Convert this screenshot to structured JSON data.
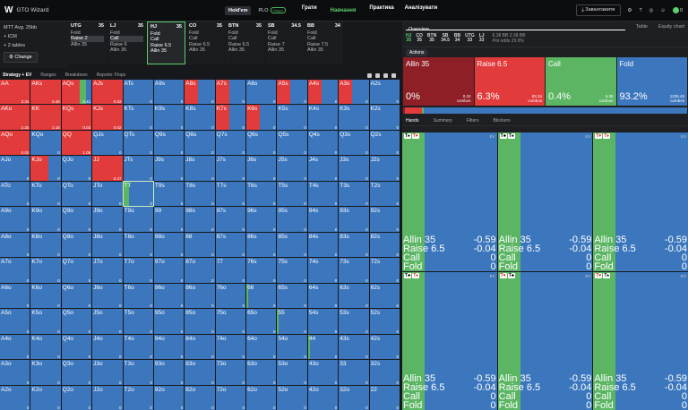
{
  "topbar": {
    "logo": "W",
    "app": "GTO Wizard",
    "modes": [
      "Hold'em",
      "PLO"
    ],
    "plo_badge": "Скоро",
    "nav": [
      "Грати",
      "Навчання",
      "Практика",
      "Аналізувати"
    ],
    "download": "Завантажити",
    "coins": "0"
  },
  "sidebar": {
    "line1": "MTT Avg. 25bb",
    "line2": "+ ICM",
    "line3": "+ 2 tables",
    "change": "Change"
  },
  "positions": [
    {
      "name": "UTG",
      "bb": "35",
      "lines": [
        "Fold",
        "Raise 2",
        "Allin 35"
      ],
      "sel": 1
    },
    {
      "name": "LJ",
      "bb": "35",
      "lines": [
        "Fold",
        "Call",
        "Raise 6",
        "Allin 35"
      ],
      "sel": 1
    },
    {
      "name": "HJ",
      "bb": "35",
      "lines": [
        "Fold",
        "Call",
        "Raise 6.5",
        "Allin 35"
      ],
      "active": true
    },
    {
      "name": "CO",
      "bb": "35",
      "lines": [
        "Fold",
        "Call",
        "Raise 6.5",
        "Allin 35"
      ]
    },
    {
      "name": "BTN",
      "bb": "35",
      "lines": [
        "Fold",
        "Call",
        "Raise 6.5",
        "Allin 35"
      ]
    },
    {
      "name": "SB",
      "bb": "34.5",
      "lines": [
        "Fold",
        "Call",
        "Raise 7",
        "Allin 35"
      ]
    },
    {
      "name": "BB",
      "bb": "34",
      "lines": [
        "Fold",
        "Call",
        "Raise 7.5",
        "Allin 35"
      ]
    }
  ],
  "toolbar": {
    "items": [
      "Strategy + EV",
      "Ranges",
      "Breakdown",
      "Reports: Flops"
    ]
  },
  "grid": [
    {
      "h": "AA",
      "v": "3.34",
      "r": 1
    },
    {
      "h": "AKs",
      "v": "0.48",
      "r": 1
    },
    {
      "h": "AQs",
      "v": "0.41",
      "r": 0.62,
      "g": [
        0.62,
        0.2
      ]
    },
    {
      "h": "AJs",
      "v": "0.02",
      "r": 1
    },
    {
      "h": "ATs",
      "v": "0"
    },
    {
      "h": "A9s",
      "v": "0"
    },
    {
      "h": "A8s",
      "v": "0",
      "r": 0.45
    },
    {
      "h": "A7s",
      "v": "0",
      "r": 0.45
    },
    {
      "h": "A6s",
      "v": "0"
    },
    {
      "h": "A5s",
      "v": "0",
      "r": 0.45
    },
    {
      "h": "A4s",
      "v": "0",
      "r": 0.45
    },
    {
      "h": "A3s",
      "v": "0",
      "r": 0.45
    },
    {
      "h": "A2s",
      "v": "0"
    },
    {
      "h": "AKo",
      "v": "2.25",
      "r": 1
    },
    {
      "h": "KK",
      "v": "2.18",
      "r": 1
    },
    {
      "h": "KQs",
      "v": "0.03",
      "r": 1
    },
    {
      "h": "KJs",
      "v": "0.02",
      "r": 1
    },
    {
      "h": "KTs",
      "v": "0"
    },
    {
      "h": "K9s",
      "v": "0"
    },
    {
      "h": "K8s",
      "v": "0"
    },
    {
      "h": "K7s",
      "v": "0",
      "r": 0.45
    },
    {
      "h": "K6s",
      "v": "0",
      "r": 0.45
    },
    {
      "h": "K5s",
      "v": "0"
    },
    {
      "h": "K4s",
      "v": "0"
    },
    {
      "h": "K3s",
      "v": "0"
    },
    {
      "h": "K2s",
      "v": "0"
    },
    {
      "h": "AQo",
      "v": "0.02",
      "r": 1
    },
    {
      "h": "KQo",
      "v": "0"
    },
    {
      "h": "QQ",
      "v": "1.08",
      "r": 1
    },
    {
      "h": "QJs",
      "v": "0"
    },
    {
      "h": "QTs",
      "v": "0"
    },
    {
      "h": "Q9s",
      "v": "0"
    },
    {
      "h": "Q8s",
      "v": "0"
    },
    {
      "h": "Q7s",
      "v": "0"
    },
    {
      "h": "Q6s",
      "v": "0"
    },
    {
      "h": "Q5s",
      "v": "0"
    },
    {
      "h": "Q4s",
      "v": "0"
    },
    {
      "h": "Q3s",
      "v": "0"
    },
    {
      "h": "Q2s",
      "v": "0"
    },
    {
      "h": "AJo",
      "v": "0"
    },
    {
      "h": "KJo",
      "v": "0",
      "r": 0.6
    },
    {
      "h": "QJo",
      "v": "0"
    },
    {
      "h": "JJ",
      "v": "0.47",
      "r": 1
    },
    {
      "h": "JTs",
      "v": "0"
    },
    {
      "h": "J9s",
      "v": "0"
    },
    {
      "h": "J8s",
      "v": "0"
    },
    {
      "h": "J7s",
      "v": "0"
    },
    {
      "h": "J6s",
      "v": "0"
    },
    {
      "h": "J5s",
      "v": "0"
    },
    {
      "h": "J4s",
      "v": "0"
    },
    {
      "h": "J3s",
      "v": "0"
    },
    {
      "h": "J2s",
      "v": "0"
    },
    {
      "h": "ATo",
      "v": "0"
    },
    {
      "h": "KTo",
      "v": "0"
    },
    {
      "h": "QTo",
      "v": "0"
    },
    {
      "h": "JTo",
      "v": "0"
    },
    {
      "h": "TT",
      "v": "0",
      "hl": true,
      "g": [
        0,
        0.2
      ]
    },
    {
      "h": "T9s",
      "v": "0"
    },
    {
      "h": "T8s",
      "v": "0"
    },
    {
      "h": "T7s",
      "v": "0"
    },
    {
      "h": "T6s",
      "v": "0"
    },
    {
      "h": "T5s",
      "v": "0"
    },
    {
      "h": "T4s",
      "v": "0"
    },
    {
      "h": "T3s",
      "v": "0"
    },
    {
      "h": "T2s",
      "v": "0"
    },
    {
      "h": "A9o",
      "v": "0"
    },
    {
      "h": "K9o",
      "v": "0"
    },
    {
      "h": "Q9o",
      "v": "0"
    },
    {
      "h": "J9o",
      "v": "0"
    },
    {
      "h": "T9o",
      "v": "0"
    },
    {
      "h": "99",
      "v": "0"
    },
    {
      "h": "98s",
      "v": "0"
    },
    {
      "h": "97s",
      "v": "0"
    },
    {
      "h": "96s",
      "v": "0"
    },
    {
      "h": "95s",
      "v": "0"
    },
    {
      "h": "94s",
      "v": "0"
    },
    {
      "h": "93s",
      "v": "0"
    },
    {
      "h": "92s",
      "v": "0"
    },
    {
      "h": "A8o",
      "v": "0"
    },
    {
      "h": "K8o",
      "v": "0"
    },
    {
      "h": "Q8o",
      "v": "0"
    },
    {
      "h": "J8o",
      "v": "0"
    },
    {
      "h": "T8o",
      "v": "0"
    },
    {
      "h": "98o",
      "v": "0"
    },
    {
      "h": "88",
      "v": "0"
    },
    {
      "h": "87s",
      "v": "0"
    },
    {
      "h": "86s",
      "v": "0"
    },
    {
      "h": "85s",
      "v": "0"
    },
    {
      "h": "84s",
      "v": "0"
    },
    {
      "h": "83s",
      "v": "0"
    },
    {
      "h": "82s",
      "v": "0"
    },
    {
      "h": "A7o",
      "v": "0"
    },
    {
      "h": "K7o",
      "v": "0"
    },
    {
      "h": "Q7o",
      "v": "0"
    },
    {
      "h": "J7o",
      "v": "0"
    },
    {
      "h": "T7o",
      "v": "0"
    },
    {
      "h": "97o",
      "v": "0"
    },
    {
      "h": "87o",
      "v": "0"
    },
    {
      "h": "77",
      "v": "0"
    },
    {
      "h": "76s",
      "v": "0"
    },
    {
      "h": "75s",
      "v": "0"
    },
    {
      "h": "74s",
      "v": "0"
    },
    {
      "h": "73s",
      "v": "0"
    },
    {
      "h": "72s",
      "v": "0"
    },
    {
      "h": "A6o",
      "v": "0"
    },
    {
      "h": "K6o",
      "v": "0"
    },
    {
      "h": "Q6o",
      "v": "0"
    },
    {
      "h": "J6o",
      "v": "0"
    },
    {
      "h": "T6o",
      "v": "0"
    },
    {
      "h": "96o",
      "v": "0"
    },
    {
      "h": "86o",
      "v": "0"
    },
    {
      "h": "76o",
      "v": "0"
    },
    {
      "h": "66",
      "v": "0",
      "g": [
        0,
        0.05
      ]
    },
    {
      "h": "65s",
      "v": "0"
    },
    {
      "h": "64s",
      "v": "0"
    },
    {
      "h": "63s",
      "v": "0"
    },
    {
      "h": "62s",
      "v": "0"
    },
    {
      "h": "A5o",
      "v": "0"
    },
    {
      "h": "K5o",
      "v": "0"
    },
    {
      "h": "Q5o",
      "v": "0"
    },
    {
      "h": "J5o",
      "v": "0"
    },
    {
      "h": "T5o",
      "v": "0"
    },
    {
      "h": "95o",
      "v": "0"
    },
    {
      "h": "85o",
      "v": "0"
    },
    {
      "h": "75o",
      "v": "0"
    },
    {
      "h": "65o",
      "v": "0"
    },
    {
      "h": "55",
      "v": "0",
      "g": [
        0,
        0.06
      ]
    },
    {
      "h": "54s",
      "v": "0"
    },
    {
      "h": "53s",
      "v": "0"
    },
    {
      "h": "52s",
      "v": "0"
    },
    {
      "h": "A4o",
      "v": "0"
    },
    {
      "h": "K4o",
      "v": "0"
    },
    {
      "h": "Q4o",
      "v": "0"
    },
    {
      "h": "J4o",
      "v": "0"
    },
    {
      "h": "T4o",
      "v": "0"
    },
    {
      "h": "94o",
      "v": "0"
    },
    {
      "h": "84o",
      "v": "0"
    },
    {
      "h": "74o",
      "v": "0"
    },
    {
      "h": "64o",
      "v": "0"
    },
    {
      "h": "54o",
      "v": "0"
    },
    {
      "h": "44",
      "v": "0",
      "g": [
        0,
        0.06
      ]
    },
    {
      "h": "43s",
      "v": "0"
    },
    {
      "h": "42s",
      "v": "0"
    },
    {
      "h": "A3o",
      "v": "0"
    },
    {
      "h": "K3o",
      "v": "0"
    },
    {
      "h": "Q3o",
      "v": "0"
    },
    {
      "h": "J3o",
      "v": "0"
    },
    {
      "h": "T3o",
      "v": "0"
    },
    {
      "h": "93o",
      "v": "0"
    },
    {
      "h": "83o",
      "v": "0"
    },
    {
      "h": "73o",
      "v": "0"
    },
    {
      "h": "63o",
      "v": "0"
    },
    {
      "h": "53o",
      "v": "0"
    },
    {
      "h": "43o",
      "v": "0"
    },
    {
      "h": "33",
      "v": "0"
    },
    {
      "h": "32s",
      "v": "0"
    },
    {
      "h": "A2o",
      "v": "0"
    },
    {
      "h": "K2o",
      "v": "0"
    },
    {
      "h": "Q2o",
      "v": "0"
    },
    {
      "h": "J2o",
      "v": "0"
    },
    {
      "h": "T2o",
      "v": "0"
    },
    {
      "h": "92o",
      "v": "0"
    },
    {
      "h": "82o",
      "v": "0"
    },
    {
      "h": "72o",
      "v": "0"
    },
    {
      "h": "62o",
      "v": "0"
    },
    {
      "h": "52o",
      "v": "0"
    },
    {
      "h": "42o",
      "v": "0"
    },
    {
      "h": "32o",
      "v": "0"
    },
    {
      "h": "22",
      "v": "0"
    }
  ],
  "right": {
    "tabs": [
      "Overview",
      "Table",
      "Equity chart"
    ],
    "positions": [
      {
        "n": "HJ",
        "b": "35",
        "hl": true
      },
      {
        "n": "CO",
        "b": "35"
      },
      {
        "n": "BTN",
        "b": "35"
      },
      {
        "n": "SB",
        "b": "34.5"
      },
      {
        "n": "BB",
        "b": "34"
      },
      {
        "n": "UTG",
        "b": "33"
      },
      {
        "n": "LJ",
        "b": "33"
      }
    ],
    "bb1": "6.38 BB",
    "bb2": "2.38 BB",
    "potodds_label": "Pot odds",
    "potodds": "23.9%",
    "actions_label": "Actions",
    "actions": [
      {
        "name": "Allin 35",
        "pct": "0%",
        "ev": "0.22",
        "combos": "combos",
        "color": "#8e1f26"
      },
      {
        "name": "Raise 6.5",
        "pct": "6.3%",
        "ev": "83.34",
        "combos": "combos",
        "color": "#e23b3b"
      },
      {
        "name": "Call",
        "pct": "0.4%",
        "ev": "5.35",
        "combos": "combos",
        "color": "#5bb562"
      },
      {
        "name": "Fold",
        "pct": "93.2%",
        "ev": "1236.49",
        "combos": "combos",
        "color": "#3c77bd"
      }
    ],
    "hand_tabs": [
      "Hands",
      "Summary",
      "Filters",
      "Blockers"
    ],
    "hands": [
      {
        "c1": "T",
        "s1": "♠",
        "c2": "T",
        "s2": "♥",
        "col1": "b",
        "col2": "r"
      },
      {
        "c1": "T",
        "s1": "♣",
        "c2": "T",
        "s2": "♠",
        "col1": "b",
        "col2": "b"
      },
      {
        "c1": "T",
        "s1": "♥",
        "c2": "T",
        "s2": "♦",
        "col1": "r",
        "col2": "r"
      },
      {
        "c1": "T",
        "s1": "♣",
        "c2": "T",
        "s2": "♦",
        "col1": "b",
        "col2": "r"
      },
      {
        "c1": "T",
        "s1": "♥",
        "c2": "T",
        "s2": "♣",
        "col1": "r",
        "col2": "b"
      },
      {
        "c1": "T",
        "s1": "♥",
        "c2": "T",
        "s2": "♠",
        "col1": "r",
        "col2": "b"
      }
    ],
    "ev_label": "EV",
    "stats": [
      {
        "a": "Allin 35",
        "v": "-0.59"
      },
      {
        "a": "Raise 6.5",
        "v": "-0.04"
      },
      {
        "a": "Call",
        "v": "0"
      },
      {
        "a": "Fold",
        "v": "0"
      }
    ]
  }
}
